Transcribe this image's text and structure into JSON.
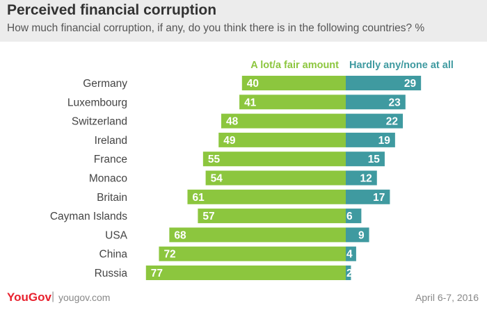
{
  "header": {
    "title": "Perceived financial corruption",
    "subtitle": "How much financial corruption, if any, do you think there is in the following countries? %"
  },
  "footer": {
    "logo": "YouGov",
    "separator": "|",
    "site": "yougov.com",
    "date": "April 6-7, 2016"
  },
  "colors": {
    "green": "#8cc63e",
    "teal": "#3f9aa0"
  },
  "chart_data": {
    "type": "bar",
    "orientation": "horizontal-diverging",
    "categories": [
      "Germany",
      "Luxembourg",
      "Switzerland",
      "Ireland",
      "France",
      "Monaco",
      "Britain",
      "Cayman Islands",
      "USA",
      "China",
      "Russia"
    ],
    "series": [
      {
        "name": "A lot/a fair amount",
        "color": "#8cc63e",
        "values": [
          40,
          41,
          48,
          49,
          55,
          54,
          61,
          57,
          68,
          72,
          77
        ]
      },
      {
        "name": "Hardly any/none at all",
        "color": "#3f9aa0",
        "values": [
          29,
          23,
          22,
          19,
          15,
          12,
          17,
          6,
          9,
          4,
          2
        ]
      }
    ],
    "legend_placement": "top",
    "grid": false
  }
}
